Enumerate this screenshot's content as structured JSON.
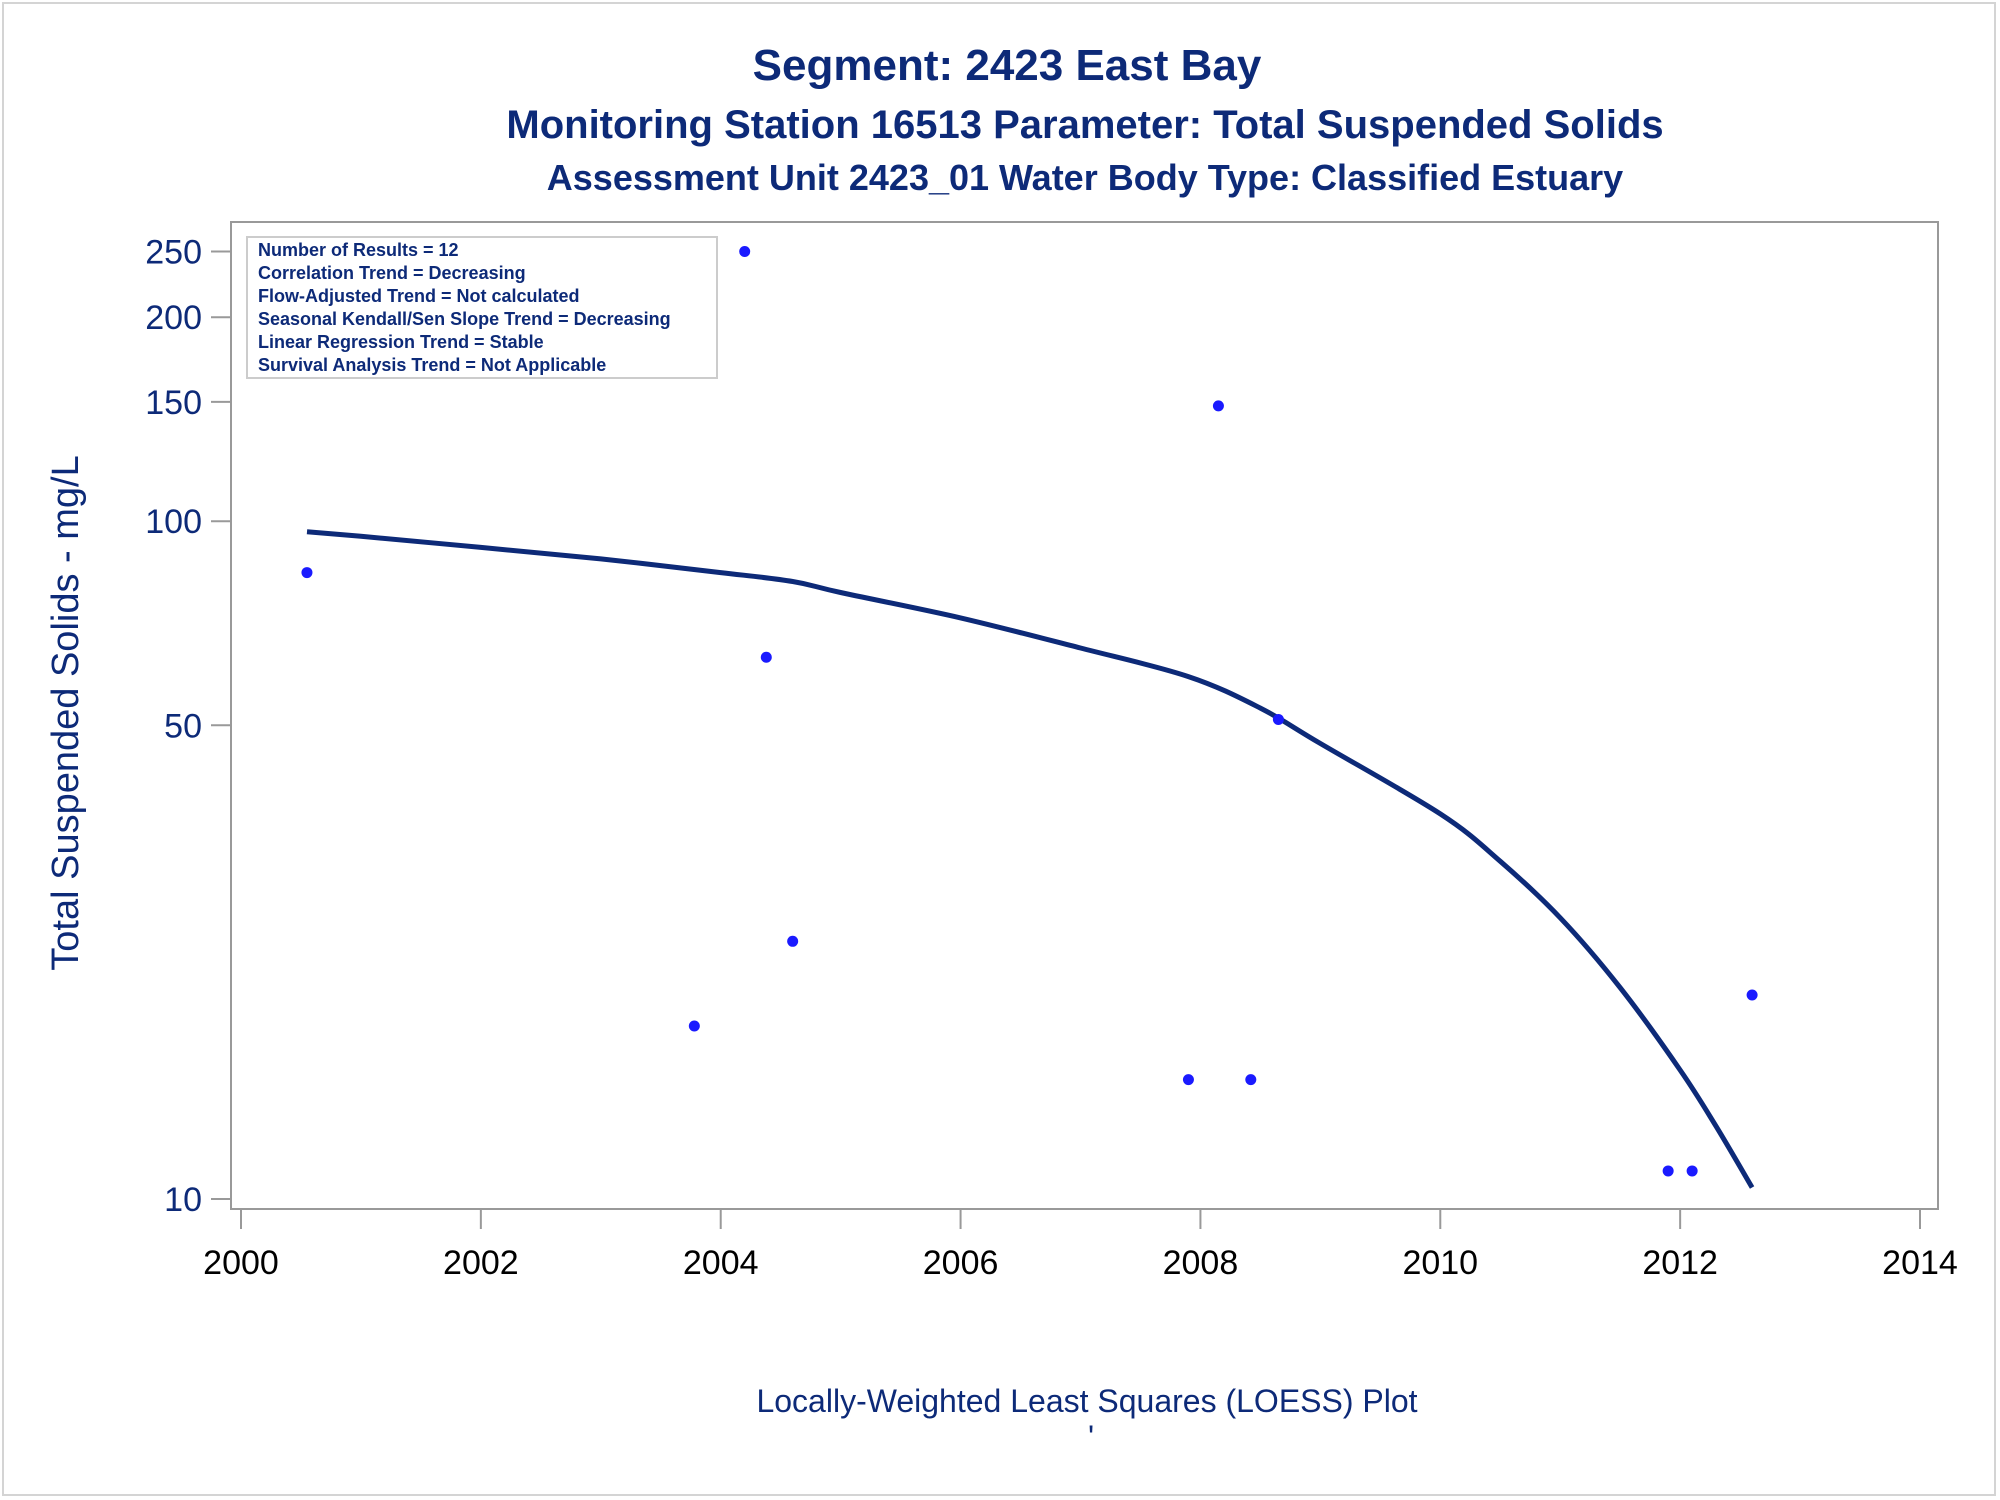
{
  "chart_data": {
    "type": "scatter",
    "title": "Segment: 2423  East Bay",
    "subtitle": "Monitoring Station 16513 Parameter: Total Suspended Solids",
    "subtitle2": "Assessment Unit 2423_01   Water Body Type: Classified Estuary",
    "xlabel": "",
    "ylabel": "Total Suspended Solids - mg/L",
    "footnote": "Locally-Weighted Least Squares (LOESS) Plot",
    "footnote_mark": "'",
    "y_scale": "log",
    "xlim": [
      2000,
      2014
    ],
    "ylim": [
      10,
      260
    ],
    "x_ticks": [
      "2000",
      "2002",
      "2004",
      "2006",
      "2008",
      "2010",
      "2012",
      "2014"
    ],
    "y_ticks": [
      {
        "value": 10,
        "label": "10"
      },
      {
        "value": 50,
        "label": "50"
      },
      {
        "value": 100,
        "label": "100"
      },
      {
        "value": 150,
        "label": "150"
      },
      {
        "value": 200,
        "label": "200"
      },
      {
        "value": 250,
        "label": "250"
      }
    ],
    "legend_placement": "top-left",
    "grid": false,
    "stats_box": [
      "Number of Results = 12",
      "Correlation Trend = Decreasing",
      "Flow-Adjusted Trend = Not calculated",
      "Seasonal Kendall/Sen Slope Trend = Decreasing",
      "Linear Regression Trend = Stable",
      "Survival Analysis Trend = Not Applicable"
    ],
    "points": [
      {
        "x": 2000.55,
        "y": 84
      },
      {
        "x": 2003.78,
        "y": 18
      },
      {
        "x": 2004.2,
        "y": 250
      },
      {
        "x": 2004.38,
        "y": 63
      },
      {
        "x": 2004.6,
        "y": 24
      },
      {
        "x": 2007.9,
        "y": 15
      },
      {
        "x": 2008.15,
        "y": 148
      },
      {
        "x": 2008.42,
        "y": 15
      },
      {
        "x": 2008.65,
        "y": 51
      },
      {
        "x": 2011.9,
        "y": 11
      },
      {
        "x": 2012.1,
        "y": 11
      },
      {
        "x": 2012.6,
        "y": 20
      }
    ],
    "loess_curve": [
      {
        "x": 2000.55,
        "y": 96.5
      },
      {
        "x": 2001.0,
        "y": 95
      },
      {
        "x": 2002.0,
        "y": 91.5
      },
      {
        "x": 2003.0,
        "y": 88
      },
      {
        "x": 2004.0,
        "y": 84
      },
      {
        "x": 2004.6,
        "y": 81.5
      },
      {
        "x": 2005.0,
        "y": 78.5
      },
      {
        "x": 2006.0,
        "y": 72
      },
      {
        "x": 2007.0,
        "y": 65
      },
      {
        "x": 2007.9,
        "y": 59
      },
      {
        "x": 2008.5,
        "y": 53
      },
      {
        "x": 2009.0,
        "y": 47
      },
      {
        "x": 2010.0,
        "y": 37
      },
      {
        "x": 2010.5,
        "y": 31.5
      },
      {
        "x": 2011.0,
        "y": 26
      },
      {
        "x": 2011.5,
        "y": 20.5
      },
      {
        "x": 2012.0,
        "y": 15.5
      },
      {
        "x": 2012.3,
        "y": 12.8
      },
      {
        "x": 2012.6,
        "y": 10.4
      }
    ],
    "colors": {
      "points": "#1a1aff",
      "curve": "#0d2a78",
      "text": "#0d2a78",
      "axis": "#999999"
    }
  }
}
